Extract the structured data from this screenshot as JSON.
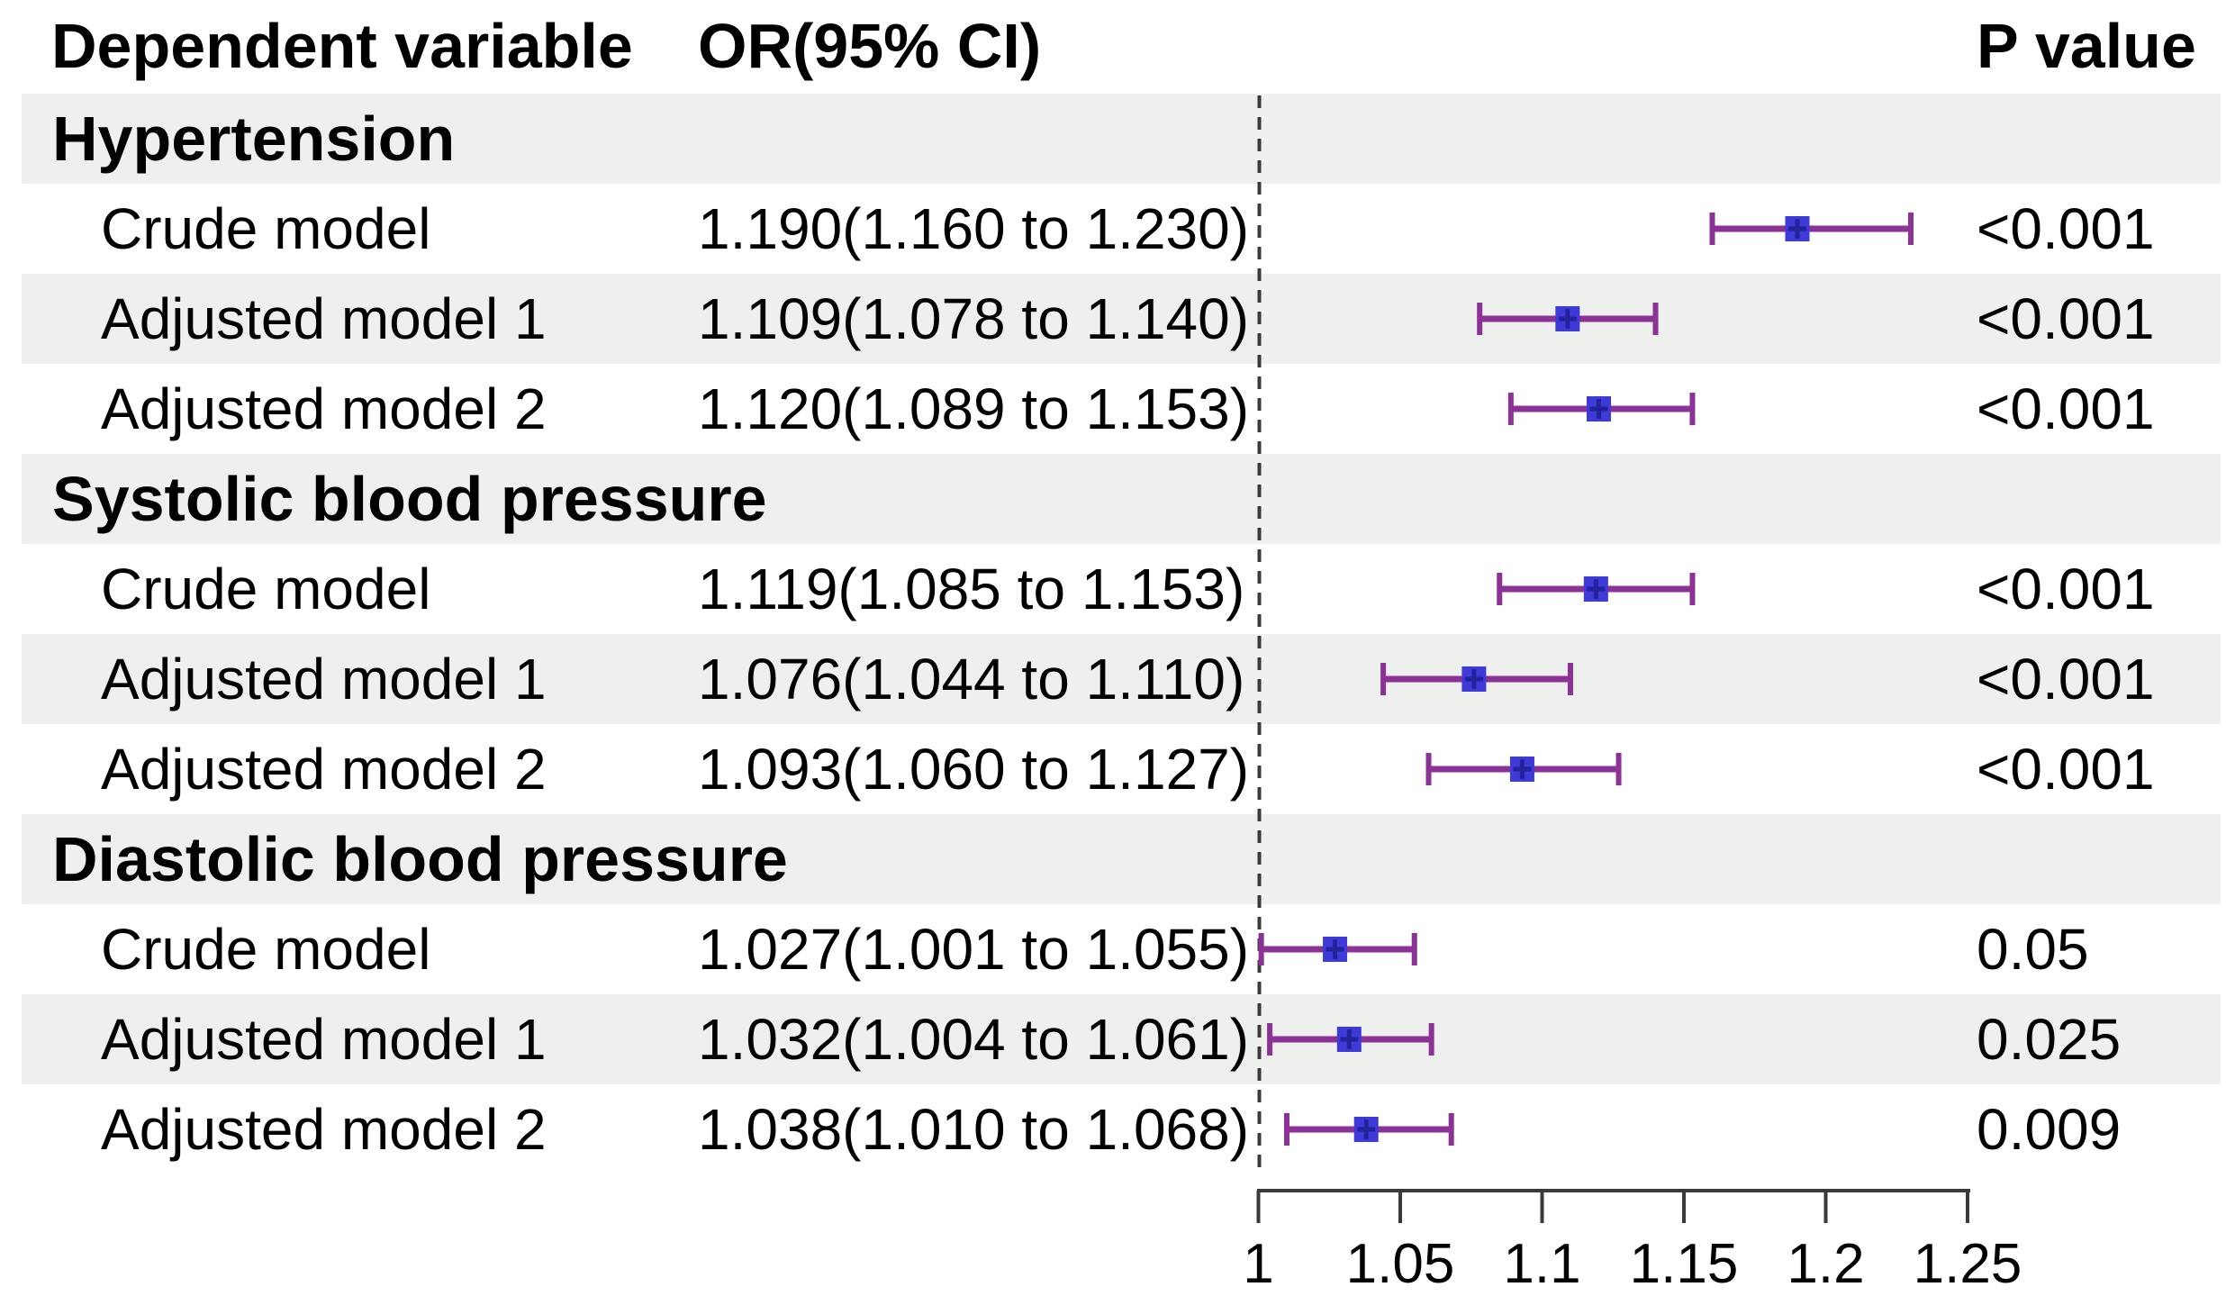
{
  "headers": {
    "dependent_variable": "Dependent variable",
    "or_ci": "OR(95% CI)",
    "p_value": "P value"
  },
  "colors": {
    "band": "#eef0ee",
    "marker": "#3d3ad8",
    "marker_cross": "#232399",
    "ci": "#8c3296",
    "axis": "#3a3a3a",
    "text": "#000000"
  },
  "axis": {
    "tick_labels": [
      "1",
      "1.05",
      "1.1",
      "1.15",
      "1.2",
      "1.25"
    ],
    "tick_values": [
      1,
      1.05,
      1.1,
      1.15,
      1.2,
      1.25
    ],
    "min": 1,
    "max": 1.25,
    "reference_value": 1
  },
  "chart_data": {
    "type": "scatter",
    "subtype": "forest-plot",
    "title": "",
    "xlabel": "",
    "ylabel": "",
    "xlim": [
      1,
      1.25
    ],
    "x_ticks": [
      1,
      1.05,
      1.1,
      1.15,
      1.2,
      1.25
    ],
    "reference_line_x": 1,
    "grid": false,
    "legend": "none",
    "groups": [
      {
        "name": "Hypertension",
        "models": [
          {
            "label": "Crude model",
            "or": 1.19,
            "ci_low": 1.16,
            "ci_high": 1.23,
            "or_text": "1.190(1.160 to 1.230)",
            "p": "<0.001"
          },
          {
            "label": "Adjusted model 1",
            "or": 1.109,
            "ci_low": 1.078,
            "ci_high": 1.14,
            "or_text": "1.109(1.078 to 1.140)",
            "p": "<0.001"
          },
          {
            "label": "Adjusted model 2",
            "or": 1.12,
            "ci_low": 1.089,
            "ci_high": 1.153,
            "or_text": "1.120(1.089 to 1.153)",
            "p": "<0.001"
          }
        ]
      },
      {
        "name": "Systolic blood pressure",
        "models": [
          {
            "label": "Crude model",
            "or": 1.119,
            "ci_low": 1.085,
            "ci_high": 1.153,
            "or_text": "1.119(1.085 to 1.153)",
            "p": "<0.001"
          },
          {
            "label": "Adjusted model 1",
            "or": 1.076,
            "ci_low": 1.044,
            "ci_high": 1.11,
            "or_text": "1.076(1.044 to 1.110)",
            "p": "<0.001"
          },
          {
            "label": "Adjusted model 2",
            "or": 1.093,
            "ci_low": 1.06,
            "ci_high": 1.127,
            "or_text": "1.093(1.060 to 1.127)",
            "p": "<0.001"
          }
        ]
      },
      {
        "name": "Diastolic blood pressure",
        "models": [
          {
            "label": "Crude model",
            "or": 1.027,
            "ci_low": 1.001,
            "ci_high": 1.055,
            "or_text": "1.027(1.001 to 1.055)",
            "p": "0.05"
          },
          {
            "label": "Adjusted model 1",
            "or": 1.032,
            "ci_low": 1.004,
            "ci_high": 1.061,
            "or_text": "1.032(1.004 to 1.061)",
            "p": "0.025"
          },
          {
            "label": "Adjusted model 2",
            "or": 1.038,
            "ci_low": 1.01,
            "ci_high": 1.068,
            "or_text": "1.038(1.010 to 1.068)",
            "p": "0.009"
          }
        ]
      }
    ]
  }
}
